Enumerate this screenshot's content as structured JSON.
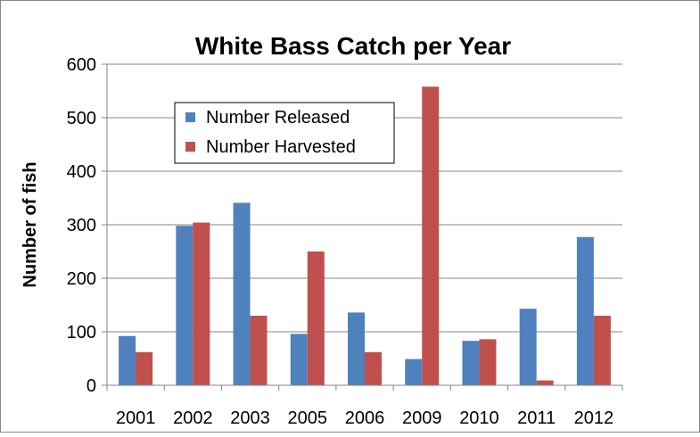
{
  "chart_data": {
    "type": "bar",
    "title": "White Bass Catch per Year",
    "xlabel": "",
    "ylabel": "Number of fish",
    "ylim": [
      0,
      600
    ],
    "yticks": [
      0,
      100,
      200,
      300,
      400,
      500,
      600
    ],
    "categories": [
      "2001",
      "2002",
      "2003",
      "2005",
      "2006",
      "2009",
      "2010",
      "2011",
      "2012"
    ],
    "series": [
      {
        "name": "Number Released",
        "color": "#4F81BD",
        "values": [
          92,
          298,
          341,
          96,
          136,
          49,
          83,
          143,
          277
        ]
      },
      {
        "name": "Number Harvested",
        "color": "#C0504D",
        "values": [
          62,
          304,
          130,
          250,
          62,
          558,
          86,
          9,
          130
        ]
      }
    ],
    "grid": true,
    "legend": "top-left inside plot"
  }
}
